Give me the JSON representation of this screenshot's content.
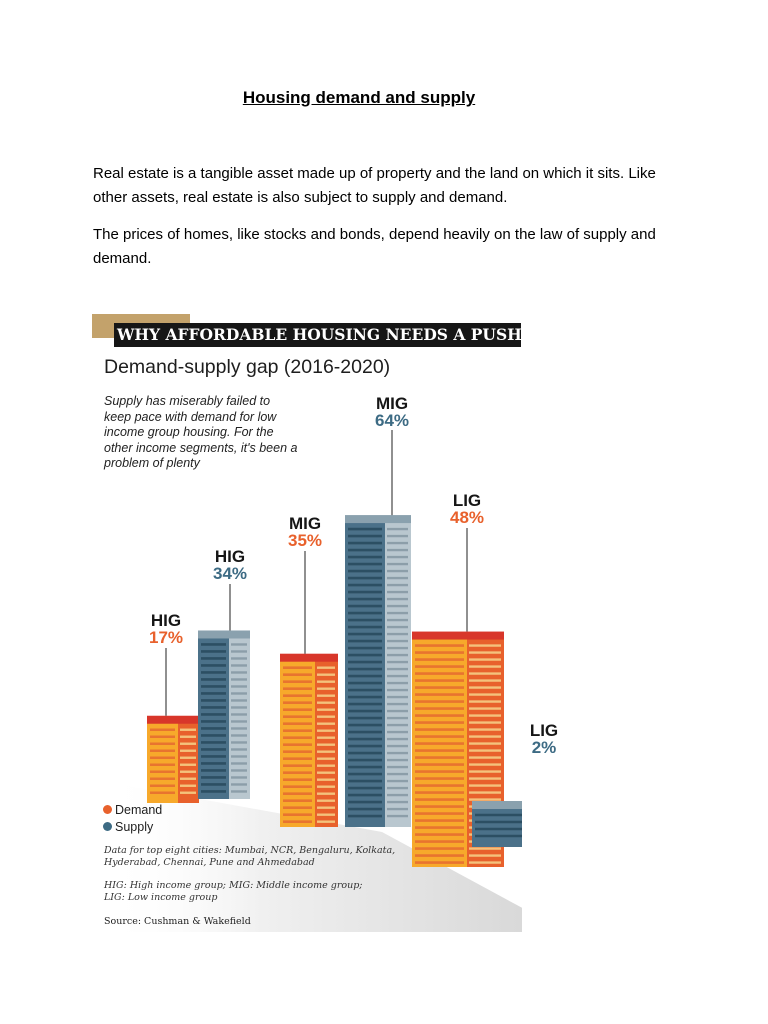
{
  "document": {
    "title": "Housing demand and supply",
    "paragraphs": [
      "Real estate is a tangible asset made up of property and the land on which it sits. Like other assets, real estate is also subject to supply and demand.",
      "The prices of homes, like stocks and bonds, depend heavily on the law of supply and demand."
    ]
  },
  "infographic": {
    "banner": "WHY AFFORDABLE HOUSING NEEDS A PUSH",
    "subtitle": "Demand-supply gap (2016-2020)",
    "description": "Supply has miserably failed to keep pace with demand for low income group housing. For the other income segments, it's been a problem of plenty",
    "legend": {
      "demand": "Demand",
      "supply": "Supply"
    },
    "notes": [
      "Data for top eight cities: Mumbai, NCR, Bengaluru, Kolkata, Hyderabad, Chennai, Pune and Ahmedabad",
      "HIG: High income group; MIG: Middle income group; LIG: Low income group"
    ],
    "source": "Source: Cushman & Wakefield",
    "colors": {
      "demand": "#e8612c",
      "supply": "#3d6b84",
      "banner": "#161616",
      "tab": "#c3a26b"
    }
  },
  "chart_data": {
    "type": "bar",
    "title": "Demand-supply gap (2016-2020)",
    "categories": [
      "HIG",
      "MIG",
      "LIG"
    ],
    "series": [
      {
        "name": "Demand",
        "values": [
          17,
          35,
          48
        ]
      },
      {
        "name": "Supply",
        "values": [
          34,
          64,
          2
        ]
      }
    ],
    "unit": "%",
    "labels": [
      {
        "category": "HIG",
        "series": "Demand",
        "text": "17%"
      },
      {
        "category": "HIG",
        "series": "Supply",
        "text": "34%"
      },
      {
        "category": "MIG",
        "series": "Demand",
        "text": "35%"
      },
      {
        "category": "MIG",
        "series": "Supply",
        "text": "64%"
      },
      {
        "category": "LIG",
        "series": "Demand",
        "text": "48%"
      },
      {
        "category": "LIG",
        "series": "Supply",
        "text": "2%"
      }
    ],
    "legend_position": "bottom-left"
  }
}
